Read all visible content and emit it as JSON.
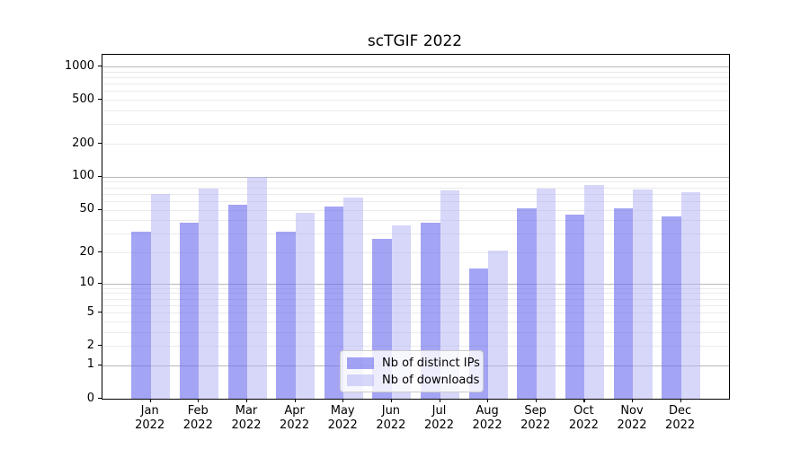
{
  "chart_data": {
    "type": "bar",
    "title": "scTGIF 2022",
    "categories": [
      "Jan 2022",
      "Feb 2022",
      "Mar 2022",
      "Apr 2022",
      "May 2022",
      "Jun 2022",
      "Jul 2022",
      "Aug 2022",
      "Sep 2022",
      "Oct 2022",
      "Nov 2022",
      "Dec 2022"
    ],
    "month_labels": [
      "Jan",
      "Feb",
      "Mar",
      "Apr",
      "May",
      "Jun",
      "Jul",
      "Aug",
      "Sep",
      "Oct",
      "Nov",
      "Dec"
    ],
    "year_label": "2022",
    "series": [
      {
        "name": "Nb of distinct IPs",
        "fill": "rgba(108,108,238,0.62)",
        "color": "#a5a5f4",
        "values": [
          31,
          38,
          55,
          31,
          53,
          27,
          38,
          14,
          51,
          45,
          51,
          43
        ]
      },
      {
        "name": "Nb of downloads",
        "fill": "rgba(178,178,243,0.52)",
        "color": "#d9d9f8",
        "values": [
          70,
          78,
          100,
          47,
          65,
          36,
          75,
          21,
          78,
          85,
          76,
          73
        ]
      }
    ],
    "xlabel": "",
    "ylabel": "",
    "yscale": "log1p",
    "ylim": [
      0,
      1276
    ],
    "ytick_values": [
      0,
      1,
      2,
      5,
      10,
      20,
      50,
      100,
      200,
      500,
      1000
    ],
    "ytick_labels": [
      "0",
      "1",
      "2",
      "5",
      "10",
      "20",
      "50",
      "100",
      "200",
      "500",
      "1000"
    ],
    "grid": "horizontal, major gray + minor light, log decades",
    "grid_major_values": [
      1,
      10,
      100,
      1000
    ],
    "grid_major_color": "#b9b9b9",
    "grid_minor_color": "#ebebeb",
    "legend_position": "lower center",
    "background_color": "#ffffff"
  },
  "legend": {
    "items": [
      {
        "label": "Nb of distinct IPs"
      },
      {
        "label": "Nb of downloads"
      }
    ]
  }
}
